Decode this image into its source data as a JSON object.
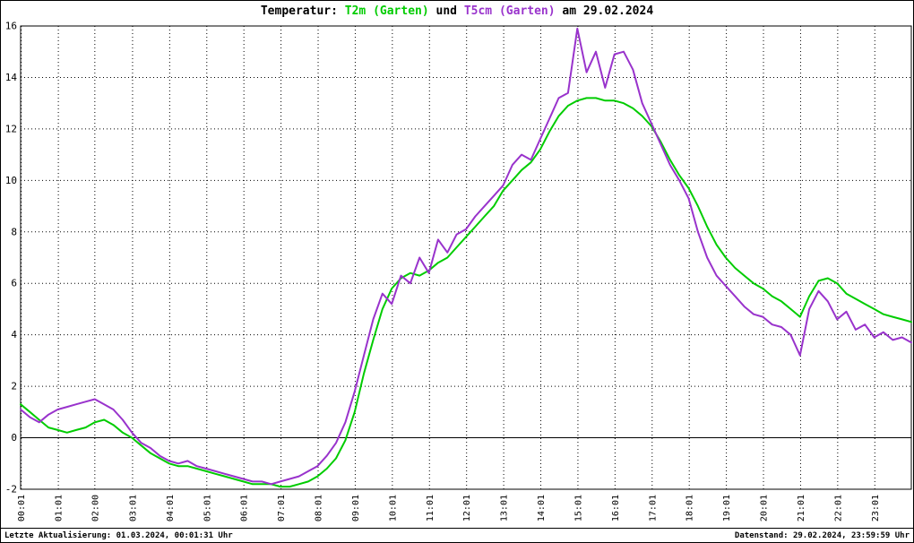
{
  "title": {
    "prefix": "Temperatur: ",
    "series1": "T2m (Garten)",
    "mid": " und ",
    "series2": "T5cm (Garten)",
    "suffix": " am 29.02.2024"
  },
  "footer": {
    "left": "Letzte Aktualisierung: 01.03.2024, 00:01:31 Uhr",
    "right": "Datenstand: 29.02.2024, 23:59:59 Uhr"
  },
  "colors": {
    "series1": "#00cc00",
    "series2": "#9933cc",
    "grid": "#000000",
    "axis": "#000000",
    "background": "#ffffff"
  },
  "chart_data": {
    "type": "line",
    "title": "Temperatur: T2m (Garten) und T5cm (Garten) am 29.02.2024",
    "xlabel": "",
    "ylabel": "",
    "ylim": [
      -2,
      16
    ],
    "y_ticks": [
      -2,
      0,
      2,
      4,
      6,
      8,
      10,
      12,
      14,
      16
    ],
    "x_domain_minutes": [
      0,
      1440
    ],
    "x_tick_labels": [
      "00:01",
      "01:01",
      "02:00",
      "03:01",
      "04:01",
      "05:01",
      "06:01",
      "07:01",
      "08:01",
      "09:01",
      "10:01",
      "11:01",
      "12:01",
      "13:01",
      "14:01",
      "15:01",
      "16:01",
      "17:01",
      "18:01",
      "19:01",
      "20:01",
      "21:01",
      "22:01",
      "23:01"
    ],
    "x_tick_minutes": [
      1,
      61,
      120,
      181,
      241,
      301,
      361,
      421,
      481,
      541,
      601,
      661,
      721,
      781,
      841,
      901,
      961,
      1021,
      1081,
      1141,
      1201,
      1261,
      1321,
      1381
    ],
    "grid": true,
    "zero_line": true,
    "legend_position": "in-title",
    "x_start_minutes": 0,
    "x_step_minutes": 15,
    "series": [
      {
        "name": "T2m (Garten)",
        "color": "#00cc00",
        "values": [
          1.3,
          1.0,
          0.7,
          0.4,
          0.3,
          0.2,
          0.3,
          0.4,
          0.6,
          0.7,
          0.5,
          0.2,
          0.0,
          -0.3,
          -0.6,
          -0.8,
          -1.0,
          -1.1,
          -1.1,
          -1.2,
          -1.3,
          -1.4,
          -1.5,
          -1.6,
          -1.7,
          -1.8,
          -1.8,
          -1.8,
          -1.9,
          -1.9,
          -1.8,
          -1.7,
          -1.5,
          -1.2,
          -0.8,
          -0.1,
          1.0,
          2.5,
          3.8,
          5.0,
          5.8,
          6.2,
          6.4,
          6.3,
          6.5,
          6.8,
          7.0,
          7.4,
          7.8,
          8.2,
          8.6,
          9.0,
          9.6,
          10.0,
          10.4,
          10.7,
          11.2,
          11.9,
          12.5,
          12.9,
          13.1,
          13.2,
          13.2,
          13.1,
          13.1,
          13.0,
          12.8,
          12.5,
          12.1,
          11.5,
          10.8,
          10.2,
          9.7,
          9.0,
          8.2,
          7.5,
          7.0,
          6.6,
          6.3,
          6.0,
          5.8,
          5.5,
          5.3,
          5.0,
          4.7,
          5.5,
          6.1,
          6.2,
          6.0,
          5.6,
          5.4,
          5.2,
          5.0,
          4.8,
          4.7,
          4.6,
          4.5
        ]
      },
      {
        "name": "T5cm (Garten)",
        "color": "#9933cc",
        "values": [
          1.1,
          0.8,
          0.6,
          0.9,
          1.1,
          1.2,
          1.3,
          1.4,
          1.5,
          1.3,
          1.1,
          0.7,
          0.2,
          -0.2,
          -0.4,
          -0.7,
          -0.9,
          -1.0,
          -0.9,
          -1.1,
          -1.2,
          -1.3,
          -1.4,
          -1.5,
          -1.6,
          -1.7,
          -1.7,
          -1.8,
          -1.7,
          -1.6,
          -1.5,
          -1.3,
          -1.1,
          -0.7,
          -0.2,
          0.6,
          1.8,
          3.2,
          4.6,
          5.6,
          5.2,
          6.3,
          6.0,
          7.0,
          6.4,
          7.7,
          7.2,
          7.9,
          8.1,
          8.6,
          9.0,
          9.4,
          9.8,
          10.6,
          11.0,
          10.8,
          11.6,
          12.4,
          13.2,
          13.4,
          15.9,
          14.2,
          15.0,
          13.6,
          14.9,
          15.0,
          14.3,
          13.0,
          12.2,
          11.4,
          10.6,
          10.0,
          9.3,
          8.0,
          7.0,
          6.3,
          5.9,
          5.5,
          5.1,
          4.8,
          4.7,
          4.4,
          4.3,
          4.0,
          3.2,
          5.0,
          5.7,
          5.3,
          4.6,
          4.9,
          4.2,
          4.4,
          3.9,
          4.1,
          3.8,
          3.9,
          3.7
        ]
      }
    ]
  }
}
